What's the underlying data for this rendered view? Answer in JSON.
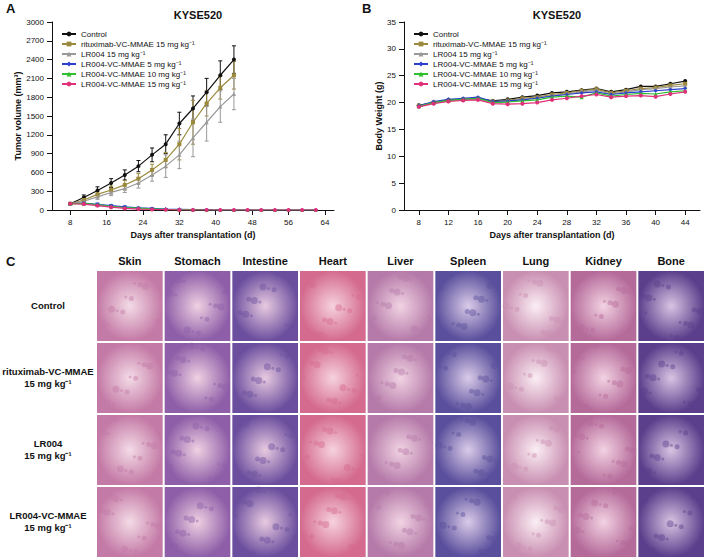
{
  "chart_data": [
    {
      "type": "line",
      "panel": "A",
      "title": "KYSE520",
      "x_label": "Days after transplantation (d)",
      "y_label": "Tumor volume (mm³)",
      "x": [
        8,
        11,
        14,
        17,
        20,
        23,
        26,
        29,
        32,
        35,
        38,
        41,
        44,
        47,
        50,
        53,
        56,
        59,
        62
      ],
      "xlim": [
        4,
        66
      ],
      "xticks": [
        8,
        16,
        24,
        32,
        40,
        48,
        56,
        64
      ],
      "ylim": [
        0,
        3000
      ],
      "yticks": [
        0,
        300,
        600,
        900,
        1200,
        1500,
        1800,
        2100,
        2400,
        2700,
        3000
      ],
      "grid": false,
      "legend": "upper left",
      "series": [
        {
          "name": "Control",
          "color": "#111111",
          "marker": "circle",
          "values": [
            100,
            200,
            310,
            430,
            560,
            700,
            880,
            1050,
            1380,
            1620,
            1880,
            2150,
            2400,
            null,
            null,
            null,
            null,
            null,
            null
          ],
          "errors": [
            15,
            40,
            60,
            70,
            80,
            90,
            110,
            150,
            180,
            200,
            220,
            230,
            220,
            null,
            null,
            null,
            null,
            null,
            null
          ]
        },
        {
          "name": "rituximab-VC-MMAE 15 mg kg⁻¹",
          "color": "#9c8a3c",
          "marker": "square",
          "values": [
            100,
            160,
            250,
            320,
            400,
            500,
            640,
            800,
            1050,
            1400,
            1700,
            1950,
            2150,
            null,
            null,
            null,
            null,
            null,
            null
          ],
          "errors": [
            15,
            30,
            50,
            60,
            70,
            80,
            90,
            120,
            250,
            350,
            200,
            180,
            220,
            null,
            null,
            null,
            null,
            null,
            null
          ]
        },
        {
          "name": "LR004 15 mg kg⁻¹",
          "color": "#999999",
          "marker": "triangle",
          "values": [
            100,
            140,
            210,
            280,
            340,
            430,
            560,
            700,
            880,
            1150,
            1400,
            1650,
            1850,
            null,
            null,
            null,
            null,
            null,
            null
          ],
          "errors": [
            15,
            30,
            40,
            50,
            60,
            80,
            100,
            180,
            220,
            300,
            300,
            250,
            250,
            null,
            null,
            null,
            null,
            null,
            null
          ]
        },
        {
          "name": "LR004-VC-MMAE 5 mg kg⁻¹",
          "color": "#2b3fd1",
          "marker": "diamond",
          "values": [
            100,
            110,
            90,
            70,
            50,
            35,
            25,
            15,
            10,
            5,
            5,
            0,
            0,
            0,
            0,
            0,
            0,
            0,
            0
          ],
          "errors": [
            15,
            20,
            20,
            15,
            15,
            10,
            10,
            5,
            5,
            5,
            5,
            0,
            0,
            0,
            0,
            0,
            0,
            0,
            0
          ]
        },
        {
          "name": "LR004-VC-MMAE 10 mg kg⁻¹",
          "color": "#2fbf2f",
          "marker": "triangle",
          "values": [
            100,
            105,
            85,
            60,
            40,
            30,
            20,
            10,
            5,
            5,
            0,
            0,
            0,
            0,
            0,
            0,
            0,
            0,
            0
          ],
          "errors": [
            15,
            20,
            15,
            15,
            10,
            10,
            5,
            5,
            5,
            5,
            0,
            0,
            0,
            0,
            0,
            0,
            0,
            0,
            0
          ]
        },
        {
          "name": "LR004-VC-MMAE 15 mg kg⁻¹",
          "color": "#e0307a",
          "marker": "circle",
          "values": [
            100,
            95,
            70,
            45,
            25,
            15,
            8,
            5,
            0,
            0,
            0,
            0,
            0,
            0,
            0,
            0,
            0,
            0,
            0
          ],
          "errors": [
            15,
            15,
            15,
            10,
            10,
            5,
            5,
            5,
            0,
            0,
            0,
            0,
            0,
            0,
            0,
            0,
            0,
            0,
            0
          ]
        }
      ]
    },
    {
      "type": "line",
      "panel": "B",
      "title": "KYSE520",
      "x_label": "Days after transplantation (d)",
      "y_label": "Body Weight (g)",
      "x": [
        8,
        10,
        12,
        14,
        16,
        18,
        20,
        22,
        24,
        26,
        28,
        30,
        32,
        34,
        36,
        38,
        40,
        42,
        44
      ],
      "xlim": [
        6,
        46
      ],
      "xticks": [
        8,
        12,
        16,
        20,
        24,
        28,
        32,
        36,
        40,
        44
      ],
      "ylim": [
        0,
        35
      ],
      "yticks": [
        0,
        5,
        10,
        15,
        20,
        25,
        30,
        35
      ],
      "grid": false,
      "legend": "upper left",
      "series": [
        {
          "name": "Control",
          "color": "#111111",
          "marker": "circle",
          "values": [
            19.5,
            20,
            20.5,
            20.6,
            20.8,
            20.3,
            20.6,
            21,
            21.3,
            21.8,
            22,
            22.3,
            22.6,
            22,
            22.4,
            23,
            23,
            23.5,
            24
          ]
        },
        {
          "name": "rituximab-VC-MMAE 15 mg kg⁻¹",
          "color": "#9c8a3c",
          "marker": "square",
          "values": [
            19.4,
            20,
            20.4,
            20.6,
            20.7,
            20.2,
            20.4,
            20.8,
            21,
            21.5,
            21.8,
            22.2,
            22.5,
            21.8,
            22.2,
            22.6,
            22.8,
            23.2,
            23.5
          ]
        },
        {
          "name": "LR004 15 mg kg⁻¹",
          "color": "#999999",
          "marker": "triangle",
          "values": [
            19.3,
            19.9,
            20.3,
            20.5,
            20.6,
            20.1,
            20.2,
            20.6,
            20.9,
            21.3,
            21.6,
            22,
            22.3,
            21.6,
            22,
            22.4,
            22.6,
            22.9,
            23.1
          ]
        },
        {
          "name": "LR004-VC-MMAE 5 mg kg⁻¹",
          "color": "#2b3fd1",
          "marker": "diamond",
          "values": [
            19.4,
            20.2,
            20.6,
            20.8,
            21,
            20.2,
            20.3,
            20.5,
            20.8,
            21.2,
            21.5,
            21.8,
            22,
            21.5,
            21.8,
            22,
            22.2,
            22.4,
            22.6
          ]
        },
        {
          "name": "LR004-VC-MMAE 10 mg kg⁻¹",
          "color": "#2fbf2f",
          "marker": "triangle",
          "values": [
            19.3,
            20,
            20.4,
            20.6,
            20.8,
            20,
            20.1,
            20.3,
            20.5,
            21,
            21.2,
            21,
            21.8,
            21.2,
            21.5,
            21.7,
            21.6,
            22,
            22.2
          ]
        },
        {
          "name": "LR004-VC-MMAE 15 mg kg⁻¹",
          "color": "#e0307a",
          "marker": "circle",
          "values": [
            19.2,
            19.8,
            20.2,
            20.4,
            20.5,
            19.8,
            19.7,
            19.8,
            20,
            20.5,
            20.8,
            21.2,
            21.5,
            21,
            21.2,
            21.3,
            21.1,
            21.6,
            22
          ]
        }
      ]
    }
  ],
  "panel_c": {
    "panel": "C",
    "columns": [
      "Skin",
      "Stomach",
      "Intestine",
      "Heart",
      "Liver",
      "Spleen",
      "Lung",
      "Kidney",
      "Bone"
    ],
    "rows": [
      {
        "name": "Control"
      },
      {
        "name": "rituximab-VC-MMAE",
        "dose": "15 mg kg⁻¹"
      },
      {
        "name": "LR004",
        "dose": "15 mg kg⁻¹"
      },
      {
        "name": "LR004-VC-MMAE",
        "dose": "15 mg kg⁻¹"
      }
    ]
  }
}
